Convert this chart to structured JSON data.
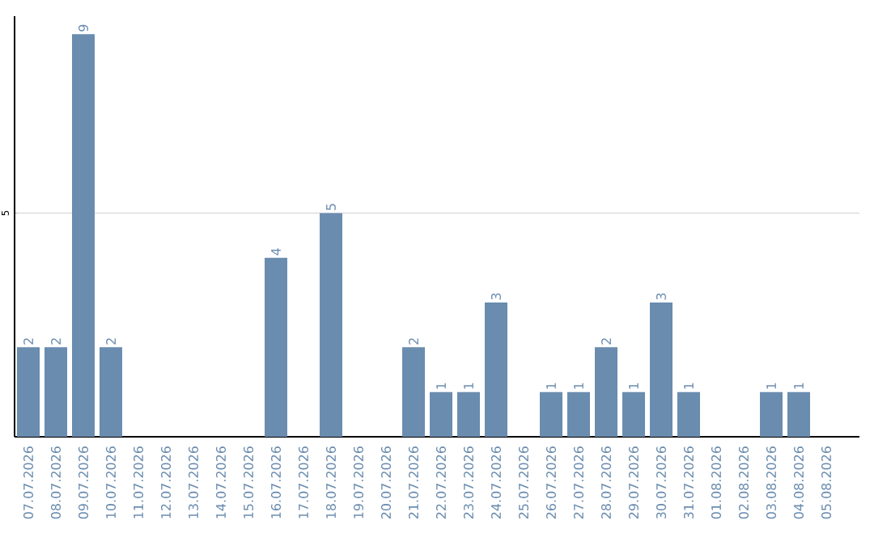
{
  "chart_data": {
    "type": "bar",
    "categories": [
      "07.07.2026",
      "08.07.2026",
      "09.07.2026",
      "10.07.2026",
      "11.07.2026",
      "12.07.2026",
      "13.07.2026",
      "14.07.2026",
      "15.07.2026",
      "16.07.2026",
      "17.07.2026",
      "18.07.2026",
      "19.07.2026",
      "20.07.2026",
      "21.07.2026",
      "22.07.2026",
      "23.07.2026",
      "24.07.2026",
      "25.07.2026",
      "26.07.2026",
      "27.07.2026",
      "28.07.2026",
      "29.07.2026",
      "30.07.2026",
      "31.07.2026",
      "01.08.2026",
      "02.08.2026",
      "03.08.2026",
      "04.08.2026",
      "05.08.2026"
    ],
    "values": [
      2,
      2,
      9,
      2,
      0,
      0,
      0,
      0,
      0,
      4,
      0,
      5,
      0,
      0,
      2,
      1,
      1,
      3,
      0,
      1,
      1,
      2,
      1,
      3,
      1,
      0,
      0,
      1,
      1,
      0
    ],
    "value_labels": [
      "2",
      "2",
      "9",
      "2",
      null,
      null,
      null,
      null,
      null,
      "4",
      null,
      "5",
      null,
      null,
      "2",
      "1",
      "1",
      "3",
      null,
      "1",
      "1",
      "2",
      "1",
      "3",
      "1",
      null,
      null,
      "1",
      "1",
      null
    ],
    "color": "#6a8caf",
    "ylim": [
      0,
      9.4
    ],
    "yticks": [
      5
    ],
    "grid": "y"
  }
}
